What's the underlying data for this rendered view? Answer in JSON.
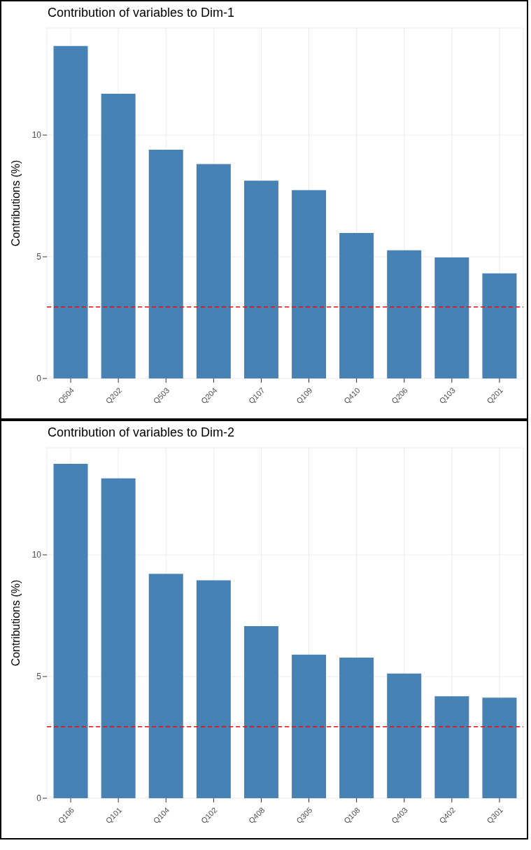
{
  "chart_data": [
    {
      "type": "bar",
      "title": "Contribution of variables to Dim-1",
      "ylabel": "Contributions (%)",
      "categories": [
        "Q504",
        "Q202",
        "Q503",
        "Q204",
        "Q107",
        "Q109",
        "Q410",
        "Q206",
        "Q103",
        "Q201"
      ],
      "values": [
        13.66,
        11.7,
        9.4,
        8.81,
        8.13,
        7.74,
        5.98,
        5.27,
        4.97,
        4.32
      ],
      "color": "#4682b4",
      "ylim": [
        0,
        14.4
      ],
      "yticks": [
        0,
        5,
        10
      ],
      "grid": true,
      "ref_lines": [
        {
          "axis": "y",
          "value": 2.94,
          "color": "#ff0000",
          "line_style": "dashed"
        }
      ]
    },
    {
      "type": "bar",
      "title": "Contribution of variables to Dim-2",
      "ylabel": "Contributions (%)",
      "categories": [
        "Q106",
        "Q101",
        "Q104",
        "Q102",
        "Q408",
        "Q305",
        "Q108",
        "Q403",
        "Q402",
        "Q301"
      ],
      "values": [
        13.74,
        13.14,
        9.22,
        8.95,
        7.07,
        5.9,
        5.78,
        5.12,
        4.19,
        4.13
      ],
      "color": "#4682b4",
      "ylim": [
        0,
        14.4
      ],
      "yticks": [
        0,
        5,
        10
      ],
      "grid": true,
      "ref_lines": [
        {
          "axis": "y",
          "value": 2.94,
          "color": "#ff0000",
          "line_style": "dashed"
        }
      ]
    }
  ]
}
